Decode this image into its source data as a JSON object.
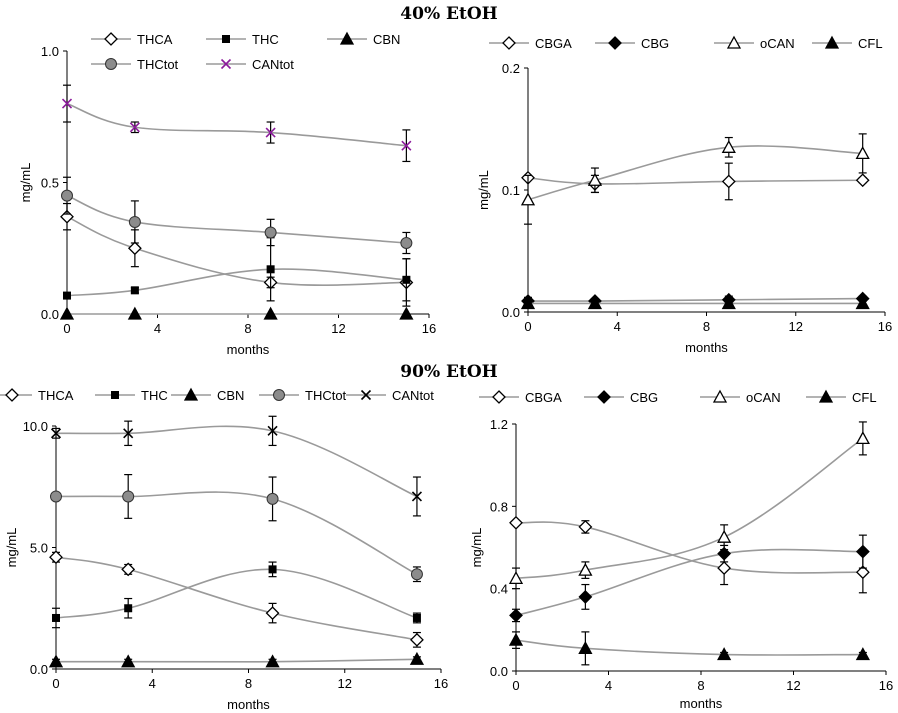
{
  "titles": {
    "top": "40% EtOH",
    "bottom": "90% EtOH"
  },
  "colors": {
    "line": "#9a9a9a",
    "errorbar": "#000000",
    "grey_fill": "#8c8c8c",
    "purple": "#8b1a9b"
  },
  "chart_data": [
    {
      "type": "line",
      "section": "40% EtOH",
      "xlabel": "months",
      "ylabel": "mg/mL",
      "xlim": [
        0,
        16
      ],
      "ylim": [
        0,
        1.0
      ],
      "xticks": [
        "0",
        "4",
        "8",
        "12",
        "16"
      ],
      "yticks": [
        "0.0",
        "0.5",
        "1.0"
      ],
      "x": [
        0,
        3,
        9,
        15
      ],
      "series": [
        {
          "name": "THCA",
          "marker": "diamond-open",
          "values": [
            0.37,
            0.25,
            0.12,
            0.12
          ],
          "errors": [
            0.05,
            0.07,
            0.02,
            0.09
          ]
        },
        {
          "name": "THC",
          "marker": "square-filled",
          "values": [
            0.07,
            0.09,
            0.17,
            0.13
          ],
          "errors": [
            0.01,
            0.01,
            0.12,
            0.08
          ]
        },
        {
          "name": "CBN",
          "marker": "triangle-filled",
          "values": [
            0.0,
            0.0,
            0.0,
            0.0
          ],
          "errors": [
            0,
            0,
            0,
            0
          ]
        },
        {
          "name": "THCtot",
          "marker": "circle-grey",
          "values": [
            0.45,
            0.35,
            0.31,
            0.27
          ],
          "errors": [
            0.07,
            0.08,
            0.05,
            0.04
          ]
        },
        {
          "name": "CANtot",
          "marker": "x-purple",
          "values": [
            0.8,
            0.71,
            0.69,
            0.64
          ],
          "errors": [
            0.07,
            0.02,
            0.04,
            0.06
          ]
        }
      ]
    },
    {
      "type": "line",
      "section": "40% EtOH",
      "xlabel": "months",
      "ylabel": "mg/mL",
      "xlim": [
        0,
        16
      ],
      "ylim": [
        0,
        0.2
      ],
      "xticks": [
        "0",
        "4",
        "8",
        "12",
        "16"
      ],
      "yticks": [
        "0.0",
        "0.1",
        "0.2"
      ],
      "x": [
        0,
        3,
        9,
        15
      ],
      "series": [
        {
          "name": "CBGA",
          "marker": "diamond-open",
          "values": [
            0.11,
            0.105,
            0.107,
            0.108
          ],
          "errors": [
            0.0,
            0.007,
            0.015,
            0.002
          ]
        },
        {
          "name": "CBG",
          "marker": "diamond-filled",
          "values": [
            0.009,
            0.009,
            0.01,
            0.011
          ],
          "errors": [
            0.003,
            0.002,
            0.003,
            0.002
          ]
        },
        {
          "name": "oCAN",
          "marker": "triangle-open",
          "values": [
            0.092,
            0.108,
            0.135,
            0.13
          ],
          "errors": [
            0.02,
            0.01,
            0.008,
            0.016
          ]
        },
        {
          "name": "CFL",
          "marker": "triangle-filled",
          "values": [
            0.007,
            0.007,
            0.007,
            0.007
          ],
          "errors": [
            0.001,
            0.001,
            0.001,
            0.002
          ]
        }
      ]
    },
    {
      "type": "line",
      "section": "90% EtOH",
      "xlabel": "months",
      "ylabel": "mg/mL",
      "xlim": [
        0,
        16
      ],
      "ylim": [
        0,
        10.0
      ],
      "xticks": [
        "0",
        "4",
        "8",
        "12",
        "16"
      ],
      "yticks": [
        "0.0",
        "5.0",
        "10.0"
      ],
      "x": [
        0,
        3,
        9,
        15
      ],
      "series": [
        {
          "name": "THCA",
          "marker": "diamond-open",
          "values": [
            4.6,
            4.1,
            2.3,
            1.2
          ],
          "errors": [
            0.2,
            0.2,
            0.4,
            0.3
          ]
        },
        {
          "name": "THC",
          "marker": "square-filled",
          "values": [
            2.1,
            2.5,
            4.1,
            2.1
          ],
          "errors": [
            0.4,
            0.4,
            0.3,
            0.2
          ]
        },
        {
          "name": "CBN",
          "marker": "triangle-filled",
          "values": [
            0.3,
            0.3,
            0.3,
            0.4
          ],
          "errors": [
            0.1,
            0.1,
            0.1,
            0.1
          ]
        },
        {
          "name": "THCtot",
          "marker": "circle-grey",
          "values": [
            7.1,
            7.1,
            7.0,
            3.9
          ],
          "errors": [
            0.0,
            0.9,
            0.9,
            0.3
          ]
        },
        {
          "name": "CANtot",
          "marker": "x-black",
          "values": [
            9.7,
            9.7,
            9.8,
            7.1
          ],
          "errors": [
            0.2,
            0.5,
            0.6,
            0.8
          ]
        }
      ]
    },
    {
      "type": "line",
      "section": "90% EtOH",
      "xlabel": "months",
      "ylabel": "mg/mL",
      "xlim": [
        0,
        16
      ],
      "ylim": [
        0,
        1.2
      ],
      "xticks": [
        "0",
        "4",
        "8",
        "12",
        "16"
      ],
      "yticks": [
        "0.0",
        "0.4",
        "0.8",
        "1.2"
      ],
      "x": [
        0,
        3,
        9,
        15
      ],
      "series": [
        {
          "name": "CBGA",
          "marker": "diamond-open",
          "values": [
            0.72,
            0.7,
            0.5,
            0.48
          ],
          "errors": [
            0.0,
            0.03,
            0.08,
            0.1
          ]
        },
        {
          "name": "CBG",
          "marker": "diamond-filled",
          "values": [
            0.27,
            0.36,
            0.57,
            0.58
          ],
          "errors": [
            0.03,
            0.06,
            0.04,
            0.08
          ]
        },
        {
          "name": "oCAN",
          "marker": "triangle-open",
          "values": [
            0.45,
            0.49,
            0.65,
            1.13
          ],
          "errors": [
            0.05,
            0.04,
            0.06,
            0.08
          ]
        },
        {
          "name": "CFL",
          "marker": "triangle-filled",
          "values": [
            0.15,
            0.11,
            0.08,
            0.08
          ],
          "errors": [
            0.04,
            0.08,
            0.01,
            0.01
          ]
        }
      ]
    }
  ]
}
